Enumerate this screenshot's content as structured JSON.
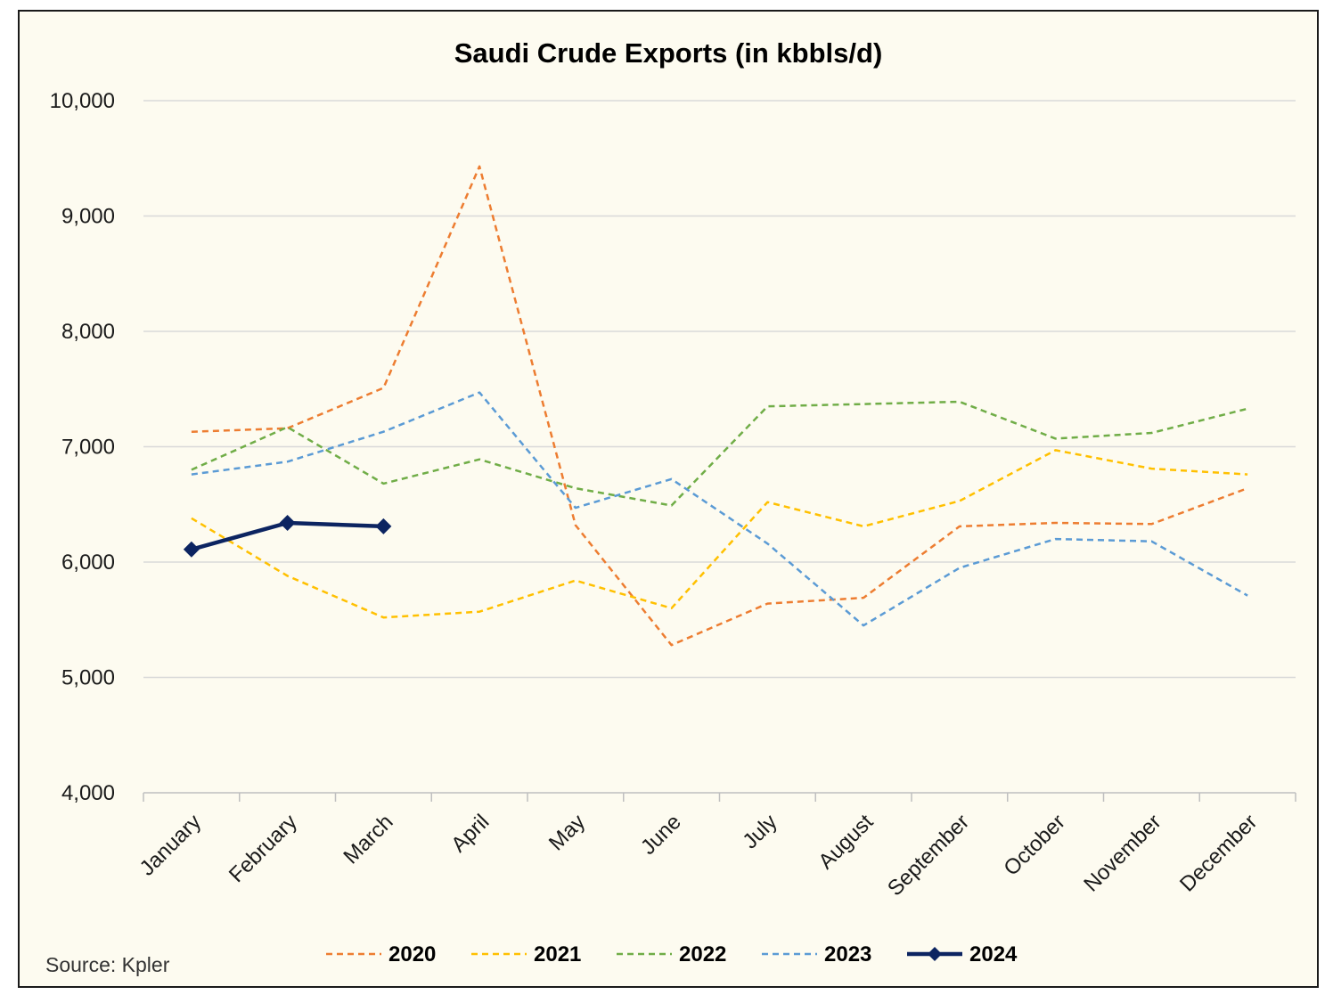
{
  "chart_data": {
    "type": "line",
    "title": "Saudi Crude Exports (in kbbls/d)",
    "xlabel": "",
    "ylabel": "",
    "categories": [
      "January",
      "February",
      "March",
      "April",
      "May",
      "June",
      "July",
      "August",
      "September",
      "October",
      "November",
      "December"
    ],
    "ylim": [
      4000,
      10000
    ],
    "yticks": [
      4000,
      5000,
      6000,
      7000,
      8000,
      9000,
      10000
    ],
    "ytick_labels": [
      "4,000",
      "5,000",
      "6,000",
      "7,000",
      "8,000",
      "9,000",
      "10,000"
    ],
    "grid": "horizontal",
    "legend_position": "bottom",
    "series": [
      {
        "name": "2020",
        "color": "#ed7d31",
        "style": "dashed",
        "values": [
          7130,
          7160,
          7510,
          9430,
          6320,
          5280,
          5640,
          5690,
          6310,
          6340,
          6330,
          6640
        ]
      },
      {
        "name": "2021",
        "color": "#ffc000",
        "style": "dashed",
        "values": [
          6380,
          5880,
          5520,
          5570,
          5840,
          5600,
          6520,
          6310,
          6530,
          6970,
          6810,
          6760
        ]
      },
      {
        "name": "2022",
        "color": "#70ad47",
        "style": "dashed",
        "values": [
          6800,
          7170,
          6680,
          6890,
          6640,
          6490,
          7350,
          7370,
          7390,
          7070,
          7120,
          7330
        ]
      },
      {
        "name": "2023",
        "color": "#5b9bd5",
        "style": "dashed",
        "values": [
          6760,
          6870,
          7130,
          7470,
          6470,
          6720,
          6160,
          5450,
          5950,
          6200,
          6180,
          5710
        ]
      },
      {
        "name": "2024",
        "color": "#0c2461",
        "style": "solid-diamond",
        "values": [
          6110,
          6340,
          6310,
          null,
          null,
          null,
          null,
          null,
          null,
          null,
          null,
          null
        ]
      }
    ]
  },
  "source": "Source: Kpler"
}
